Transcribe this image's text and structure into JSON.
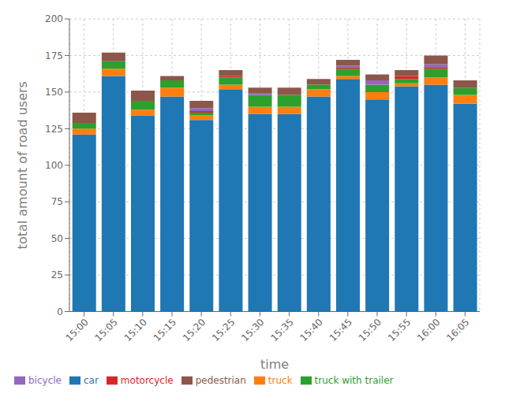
{
  "chart_data": {
    "type": "bar",
    "stacked": true,
    "xlabel": "time",
    "ylabel": "total amount of road users",
    "categories": [
      "15:00",
      "15:05",
      "15:10",
      "15:15",
      "15:20",
      "15:25",
      "15:30",
      "15:35",
      "15:40",
      "15:45",
      "15:50",
      "15:55",
      "16:00",
      "16:05"
    ],
    "series": [
      {
        "name": "car",
        "color": "#1f77b4",
        "values": [
          121,
          161,
          134,
          147,
          131,
          152,
          135,
          135,
          147,
          159,
          145,
          154,
          155,
          142
        ]
      },
      {
        "name": "truck",
        "color": "#ff7f0e",
        "values": [
          4,
          5,
          4,
          6,
          3,
          3,
          5,
          5,
          5,
          2,
          5,
          2,
          5,
          6
        ]
      },
      {
        "name": "truck with trailer",
        "color": "#2ca02c",
        "values": [
          4,
          5,
          6,
          5,
          2,
          5,
          8,
          8,
          3,
          5,
          5,
          3,
          6,
          5
        ]
      },
      {
        "name": "motorcycle",
        "color": "#d62728",
        "values": [
          0,
          0,
          0,
          0,
          1,
          1,
          0,
          0,
          0,
          1,
          0,
          2,
          1,
          0
        ]
      },
      {
        "name": "bicycle",
        "color": "#9467bd",
        "values": [
          0,
          0,
          0,
          0,
          2,
          0,
          1,
          0,
          0,
          1,
          3,
          0,
          2,
          0
        ]
      },
      {
        "name": "pedestrian",
        "color": "#8c564b",
        "values": [
          7,
          6,
          7,
          3,
          5,
          4,
          4,
          5,
          4,
          4,
          4,
          4,
          6,
          5
        ]
      }
    ],
    "ylim": [
      0,
      200
    ],
    "yticks": [
      0,
      25,
      50,
      75,
      100,
      125,
      150,
      175,
      200
    ],
    "grid": true,
    "legend": "lower left"
  }
}
